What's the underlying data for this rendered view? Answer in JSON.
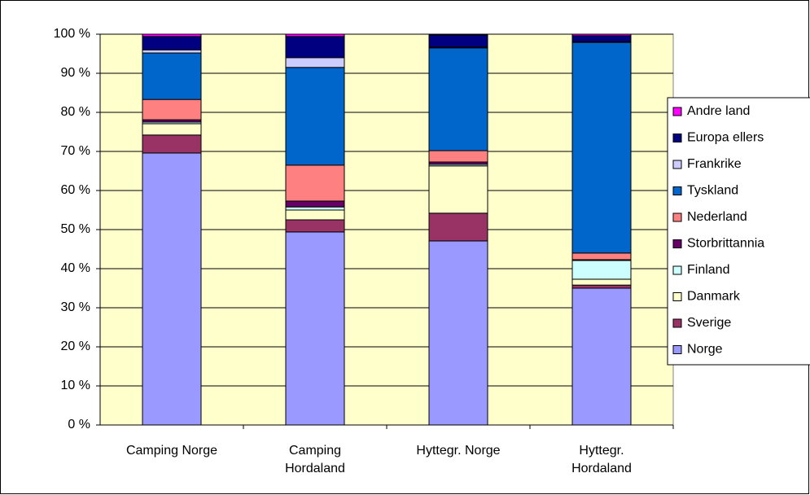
{
  "chart_data": {
    "type": "stacked_bar_100",
    "categories": [
      "Camping Norge",
      "Camping Hordaland",
      "Hyttegr. Norge",
      "Hyttegr. Hordaland"
    ],
    "series": [
      {
        "name": "Norge",
        "color": "#9999ff",
        "values": [
          69.6,
          49.4,
          47.1,
          35.0
        ]
      },
      {
        "name": "Sverige",
        "color": "#993366",
        "values": [
          4.6,
          3.1,
          7.1,
          0.8
        ]
      },
      {
        "name": "Danmark",
        "color": "#ffffcc",
        "values": [
          2.9,
          2.5,
          12.1,
          1.5
        ]
      },
      {
        "name": "Finland",
        "color": "#ccffff",
        "values": [
          0.4,
          0.8,
          0.4,
          4.8
        ]
      },
      {
        "name": "Storbrittannia",
        "color": "#660066",
        "values": [
          0.6,
          1.5,
          0.6,
          0.2
        ]
      },
      {
        "name": "Nederland",
        "color": "#ff8080",
        "values": [
          5.2,
          9.2,
          2.9,
          1.7
        ]
      },
      {
        "name": "Tyskland",
        "color": "#0066cc",
        "values": [
          11.9,
          25.0,
          26.3,
          53.9
        ]
      },
      {
        "name": "Frankrike",
        "color": "#ccccff",
        "values": [
          0.8,
          2.5,
          0.2,
          0.2
        ]
      },
      {
        "name": "Europa ellers",
        "color": "#000080",
        "values": [
          3.4,
          5.4,
          3.1,
          1.5
        ]
      },
      {
        "name": "Andre land",
        "color": "#ff00ff",
        "values": [
          0.6,
          0.6,
          0.2,
          0.4
        ]
      }
    ],
    "ylim": [
      0,
      100
    ],
    "yticks": [
      {
        "value": 0,
        "label": "0 %"
      },
      {
        "value": 10,
        "label": "10 %"
      },
      {
        "value": 20,
        "label": "20 %"
      },
      {
        "value": 30,
        "label": "30 %"
      },
      {
        "value": 40,
        "label": "40 %"
      },
      {
        "value": 50,
        "label": "50 %"
      },
      {
        "value": 60,
        "label": "60 %"
      },
      {
        "value": 70,
        "label": "70 %"
      },
      {
        "value": 80,
        "label": "80 %"
      },
      {
        "value": 90,
        "label": "90 %"
      },
      {
        "value": 100,
        "label": "100 %"
      }
    ],
    "grid": true,
    "legend": "right",
    "plot_background": "#ffffcc"
  }
}
